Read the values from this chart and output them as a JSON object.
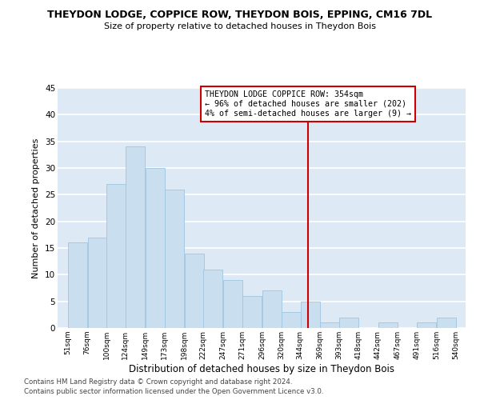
{
  "title": "THEYDON LODGE, COPPICE ROW, THEYDON BOIS, EPPING, CM16 7DL",
  "subtitle": "Size of property relative to detached houses in Theydon Bois",
  "xlabel": "Distribution of detached houses by size in Theydon Bois",
  "ylabel": "Number of detached properties",
  "bins": [
    51,
    76,
    100,
    124,
    149,
    173,
    198,
    222,
    247,
    271,
    296,
    320,
    344,
    369,
    393,
    418,
    442,
    467,
    491,
    516,
    540
  ],
  "counts": [
    16,
    17,
    27,
    34,
    30,
    26,
    14,
    11,
    9,
    6,
    7,
    3,
    5,
    1,
    2,
    0,
    1,
    0,
    1,
    2
  ],
  "bar_color": "#c9dff0",
  "bar_edge_color": "#a0c4e0",
  "grid_color": "#ffffff",
  "bg_color": "#ddeaf5",
  "vline_x": 354,
  "vline_color": "#cc0000",
  "ylim": [
    0,
    45
  ],
  "yticks": [
    0,
    5,
    10,
    15,
    20,
    25,
    30,
    35,
    40,
    45
  ],
  "annotation_title": "THEYDON LODGE COPPICE ROW: 354sqm",
  "annotation_line1": "← 96% of detached houses are smaller (202)",
  "annotation_line2": "4% of semi-detached houses are larger (9) →",
  "footer_line1": "Contains HM Land Registry data © Crown copyright and database right 2024.",
  "footer_line2": "Contains public sector information licensed under the Open Government Licence v3.0."
}
